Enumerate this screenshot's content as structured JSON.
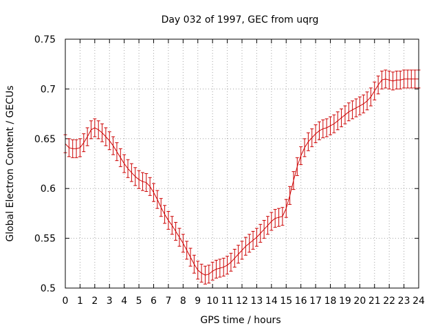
{
  "chart_data": {
    "type": "line",
    "title": "Day 032 of 1997, GEC from uqrg",
    "xlabel": "GPS time / hours",
    "ylabel": "Global Electron Content / GECUs",
    "xlim": [
      0,
      24
    ],
    "ylim": [
      0.5,
      0.75
    ],
    "x_ticks": [
      "0",
      "1",
      "2",
      "3",
      "4",
      "5",
      "6",
      "7",
      "8",
      "9",
      "10",
      "11",
      "12",
      "13",
      "14",
      "15",
      "16",
      "17",
      "18",
      "19",
      "20",
      "21",
      "22",
      "23",
      "24"
    ],
    "y_ticks": [
      "0.5",
      "0.55",
      "0.6",
      "0.65",
      "0.7",
      "0.75"
    ],
    "grid": true,
    "legend": "none",
    "series_color": "#cc0000",
    "error_bar": 0.009,
    "x": [
      0,
      0.25,
      0.5,
      0.75,
      1,
      1.25,
      1.5,
      1.75,
      2,
      2.25,
      2.5,
      2.75,
      3,
      3.25,
      3.5,
      3.75,
      4,
      4.25,
      4.5,
      4.75,
      5,
      5.25,
      5.5,
      5.75,
      6,
      6.25,
      6.5,
      6.75,
      7,
      7.25,
      7.5,
      7.75,
      8,
      8.25,
      8.5,
      8.75,
      9,
      9.25,
      9.5,
      9.75,
      10,
      10.25,
      10.5,
      10.75,
      11,
      11.25,
      11.5,
      11.75,
      12,
      12.25,
      12.5,
      12.75,
      13,
      13.25,
      13.5,
      13.75,
      14,
      14.25,
      14.5,
      14.75,
      15,
      15.25,
      15.5,
      15.75,
      16,
      16.25,
      16.5,
      16.75,
      17,
      17.25,
      17.5,
      17.75,
      18,
      18.25,
      18.5,
      18.75,
      19,
      19.25,
      19.5,
      19.75,
      20,
      20.25,
      20.5,
      20.75,
      21,
      21.25,
      21.5,
      21.75,
      22,
      22.25,
      22.5,
      22.75,
      23,
      23.25,
      23.5,
      23.75,
      24
    ],
    "y": [
      0.645,
      0.641,
      0.64,
      0.64,
      0.641,
      0.646,
      0.652,
      0.659,
      0.661,
      0.659,
      0.656,
      0.652,
      0.648,
      0.643,
      0.637,
      0.631,
      0.625,
      0.62,
      0.616,
      0.612,
      0.609,
      0.607,
      0.606,
      0.602,
      0.596,
      0.589,
      0.581,
      0.574,
      0.568,
      0.563,
      0.557,
      0.551,
      0.545,
      0.538,
      0.531,
      0.524,
      0.518,
      0.515,
      0.513,
      0.514,
      0.517,
      0.519,
      0.52,
      0.521,
      0.523,
      0.526,
      0.53,
      0.534,
      0.538,
      0.542,
      0.545,
      0.548,
      0.551,
      0.555,
      0.559,
      0.563,
      0.567,
      0.57,
      0.571,
      0.572,
      0.58,
      0.593,
      0.608,
      0.622,
      0.633,
      0.641,
      0.647,
      0.651,
      0.655,
      0.658,
      0.66,
      0.661,
      0.663,
      0.665,
      0.668,
      0.671,
      0.674,
      0.677,
      0.679,
      0.681,
      0.683,
      0.685,
      0.688,
      0.692,
      0.698,
      0.704,
      0.709,
      0.71,
      0.709,
      0.708,
      0.709,
      0.709,
      0.71,
      0.71,
      0.71,
      0.71,
      0.71
    ]
  }
}
